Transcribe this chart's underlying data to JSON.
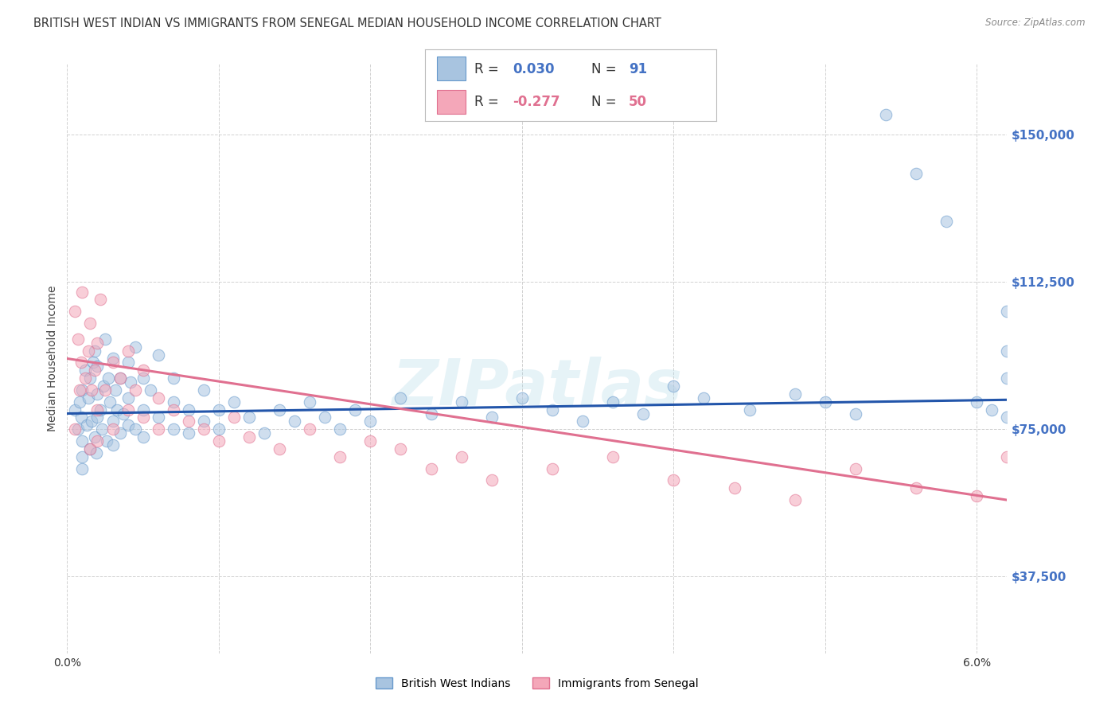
{
  "title": "BRITISH WEST INDIAN VS IMMIGRANTS FROM SENEGAL MEDIAN HOUSEHOLD INCOME CORRELATION CHART",
  "source": "Source: ZipAtlas.com",
  "ylabel": "Median Household Income",
  "xlim": [
    0.0,
    0.062
  ],
  "ylim": [
    18000,
    168000
  ],
  "yticks": [
    37500,
    75000,
    112500,
    150000
  ],
  "ytick_labels": [
    "$37,500",
    "$75,000",
    "$112,500",
    "$150,000"
  ],
  "xticks": [
    0.0,
    0.01,
    0.02,
    0.03,
    0.04,
    0.05,
    0.06
  ],
  "watermark": "ZIPatlas",
  "blue_series": {
    "name": "British West Indians",
    "face_color": "#a8c4e0",
    "edge_color": "#6699cc",
    "trend_color": "#2255aa",
    "trend_x": [
      0.0,
      0.062
    ],
    "trend_y": [
      79000,
      82500
    ],
    "x": [
      0.0005,
      0.0007,
      0.0008,
      0.0009,
      0.001,
      0.001,
      0.001,
      0.001,
      0.0012,
      0.0013,
      0.0014,
      0.0015,
      0.0015,
      0.0016,
      0.0017,
      0.0018,
      0.0018,
      0.0019,
      0.002,
      0.002,
      0.002,
      0.0022,
      0.0023,
      0.0024,
      0.0025,
      0.0026,
      0.0027,
      0.0028,
      0.003,
      0.003,
      0.003,
      0.0032,
      0.0033,
      0.0035,
      0.0035,
      0.0037,
      0.004,
      0.004,
      0.004,
      0.0042,
      0.0045,
      0.0045,
      0.005,
      0.005,
      0.005,
      0.0055,
      0.006,
      0.006,
      0.007,
      0.007,
      0.007,
      0.008,
      0.008,
      0.009,
      0.009,
      0.01,
      0.01,
      0.011,
      0.012,
      0.013,
      0.014,
      0.015,
      0.016,
      0.017,
      0.018,
      0.019,
      0.02,
      0.022,
      0.024,
      0.026,
      0.028,
      0.03,
      0.032,
      0.034,
      0.036,
      0.038,
      0.04,
      0.042,
      0.045,
      0.048,
      0.05,
      0.052,
      0.054,
      0.056,
      0.058,
      0.06,
      0.061,
      0.062,
      0.062,
      0.062,
      0.062
    ],
    "y": [
      80000,
      75000,
      82000,
      78000,
      85000,
      72000,
      68000,
      65000,
      90000,
      76000,
      83000,
      88000,
      70000,
      77000,
      92000,
      73000,
      95000,
      69000,
      78000,
      84000,
      91000,
      80000,
      75000,
      86000,
      98000,
      72000,
      88000,
      82000,
      77000,
      93000,
      71000,
      85000,
      80000,
      74000,
      88000,
      79000,
      92000,
      76000,
      83000,
      87000,
      75000,
      96000,
      80000,
      73000,
      88000,
      85000,
      78000,
      94000,
      82000,
      75000,
      88000,
      80000,
      74000,
      77000,
      85000,
      80000,
      75000,
      82000,
      78000,
      74000,
      80000,
      77000,
      82000,
      78000,
      75000,
      80000,
      77000,
      83000,
      79000,
      82000,
      78000,
      83000,
      80000,
      77000,
      82000,
      79000,
      86000,
      83000,
      80000,
      84000,
      82000,
      79000,
      155000,
      140000,
      128000,
      82000,
      80000,
      78000,
      105000,
      95000,
      88000
    ]
  },
  "pink_series": {
    "name": "Immigrants from Senegal",
    "face_color": "#f4a7b9",
    "edge_color": "#e07090",
    "trend_color": "#e07090",
    "trend_x": [
      0.0,
      0.062
    ],
    "trend_y": [
      93000,
      57000
    ],
    "x": [
      0.0005,
      0.0007,
      0.0009,
      0.001,
      0.0012,
      0.0014,
      0.0015,
      0.0016,
      0.0018,
      0.002,
      0.002,
      0.0022,
      0.0025,
      0.003,
      0.003,
      0.0035,
      0.004,
      0.004,
      0.0045,
      0.005,
      0.005,
      0.006,
      0.006,
      0.007,
      0.008,
      0.009,
      0.01,
      0.011,
      0.012,
      0.014,
      0.016,
      0.018,
      0.02,
      0.022,
      0.024,
      0.026,
      0.028,
      0.032,
      0.036,
      0.04,
      0.044,
      0.048,
      0.052,
      0.056,
      0.06,
      0.062,
      0.0005,
      0.0008,
      0.0015,
      0.002
    ],
    "y": [
      105000,
      98000,
      92000,
      110000,
      88000,
      95000,
      102000,
      85000,
      90000,
      97000,
      80000,
      108000,
      85000,
      92000,
      75000,
      88000,
      95000,
      80000,
      85000,
      78000,
      90000,
      83000,
      75000,
      80000,
      77000,
      75000,
      72000,
      78000,
      73000,
      70000,
      75000,
      68000,
      72000,
      70000,
      65000,
      68000,
      62000,
      65000,
      68000,
      62000,
      60000,
      57000,
      65000,
      60000,
      58000,
      68000,
      75000,
      85000,
      70000,
      72000
    ]
  },
  "background_color": "#ffffff",
  "grid_color": "#cccccc",
  "scatter_size": 110,
  "scatter_alpha": 0.55,
  "legend_label_blue": "British West Indians",
  "legend_label_pink": "Immigrants from Senegal"
}
